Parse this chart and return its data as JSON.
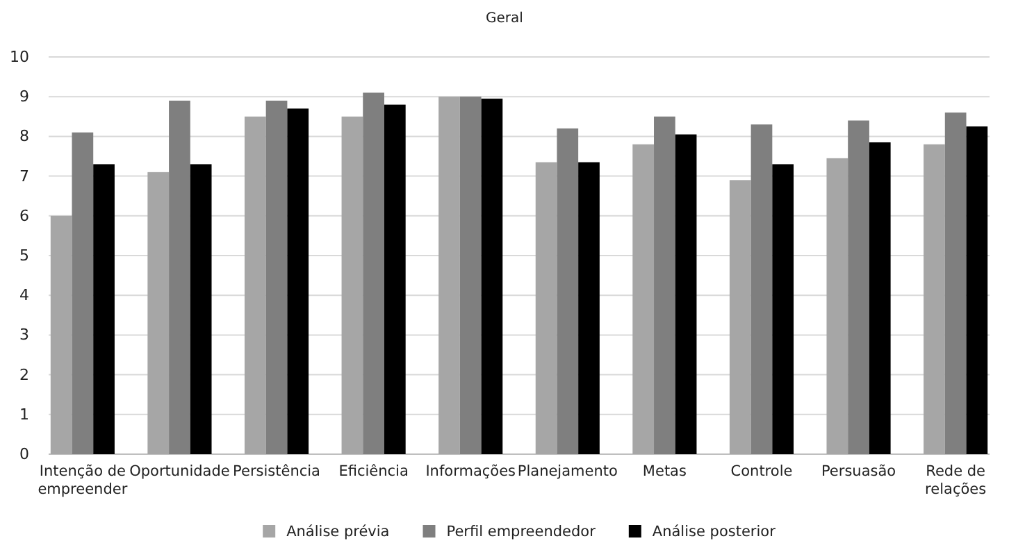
{
  "chart_data": {
    "type": "bar",
    "title": "Geral",
    "categories": [
      "Intenção de empreender",
      "Oportunidade",
      "Persistência",
      "Eficiência",
      "Informações",
      "Planejamento",
      "Metas",
      "Controle",
      "Persuasão",
      "Rede de relações"
    ],
    "series": [
      {
        "name": "Análise prévia",
        "color": "#a6a6a6",
        "values": [
          6.0,
          7.1,
          8.5,
          8.5,
          9.0,
          7.35,
          7.8,
          6.9,
          7.45,
          7.8
        ]
      },
      {
        "name": "Perfil empreendedor",
        "color": "#7f7f7f",
        "values": [
          8.1,
          8.9,
          8.9,
          9.1,
          9.0,
          8.2,
          8.5,
          8.3,
          8.4,
          8.6
        ]
      },
      {
        "name": "Análise posterior",
        "color": "#000000",
        "values": [
          7.3,
          7.3,
          8.7,
          8.8,
          8.95,
          7.35,
          8.05,
          7.3,
          7.85,
          8.25
        ]
      }
    ],
    "ylim": [
      0,
      10
    ],
    "yticks": [
      0,
      1,
      2,
      3,
      4,
      5,
      6,
      7,
      8,
      9,
      10
    ],
    "grid": "y",
    "legend": "bottom"
  }
}
